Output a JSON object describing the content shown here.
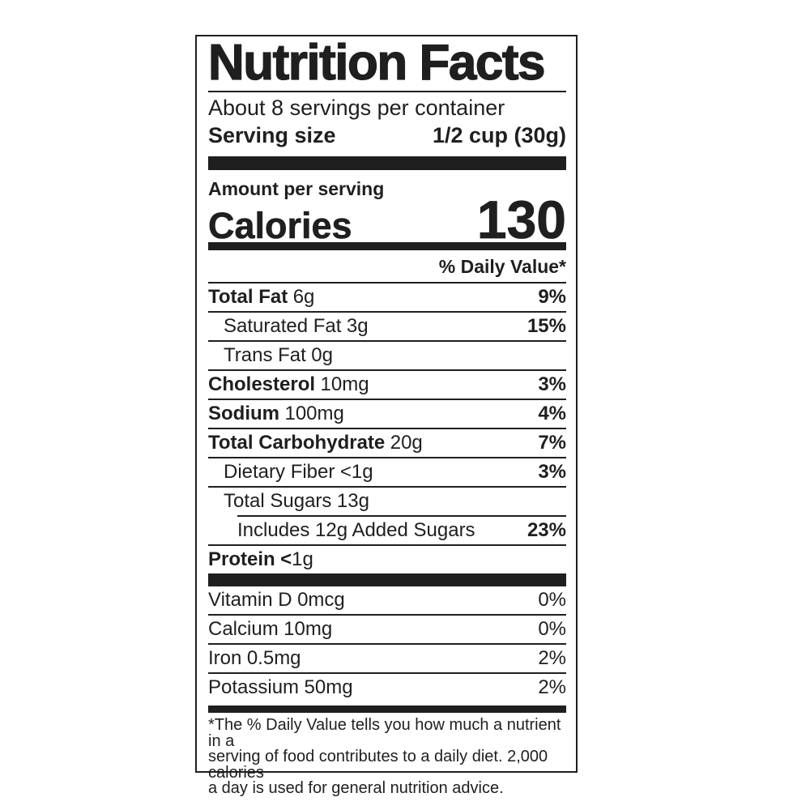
{
  "label": {
    "title": "Nutrition Facts",
    "servings_per_container": "About 8 servings per container",
    "serving_size_label": "Serving size",
    "serving_size_value": "1/2 cup (30g)",
    "amount_per_serving": "Amount per serving",
    "calories_label": "Calories",
    "calories_value": "130",
    "daily_value_header": "% Daily Value*",
    "nutrients": [
      {
        "name": "Total Fat",
        "amount": "6g",
        "dv": "9%"
      },
      {
        "name": "Saturated Fat",
        "amount": "3g",
        "dv": "15%"
      },
      {
        "name": "Trans Fat",
        "amount": "0g",
        "dv": ""
      },
      {
        "name": "Cholesterol",
        "amount": "10mg",
        "dv": "3%"
      },
      {
        "name": "Sodium",
        "amount": "100mg",
        "dv": "4%"
      },
      {
        "name": "Total Carbohydrate",
        "amount": "20g",
        "dv": "7%"
      },
      {
        "name": "Dietary Fiber",
        "amount": "<1g",
        "dv": "3%"
      },
      {
        "name": "Total Sugars",
        "amount": "13g",
        "dv": ""
      },
      {
        "name": "Includes 12g Added Sugars",
        "amount": "",
        "dv": "23%"
      },
      {
        "name": "Protein",
        "amount_bold": "<",
        "amount": "1g",
        "dv": ""
      }
    ],
    "vitamins": [
      {
        "name": "Vitamin D",
        "amount": "0mcg",
        "dv": "0%"
      },
      {
        "name": "Calcium",
        "amount": "10mg",
        "dv": "0%"
      },
      {
        "name": "Iron",
        "amount": "0.5mg",
        "dv": "2%"
      },
      {
        "name": "Potassium",
        "amount": "50mg",
        "dv": "2%"
      }
    ],
    "footnote_lines": [
      "*The % Daily Value tells you how much a nutrient in a",
      "serving of food contributes to a daily diet. 2,000 calories",
      "a day is used for general nutrition advice."
    ],
    "colors": {
      "ink": "#1f1f1f",
      "background": "#ffffff"
    }
  }
}
